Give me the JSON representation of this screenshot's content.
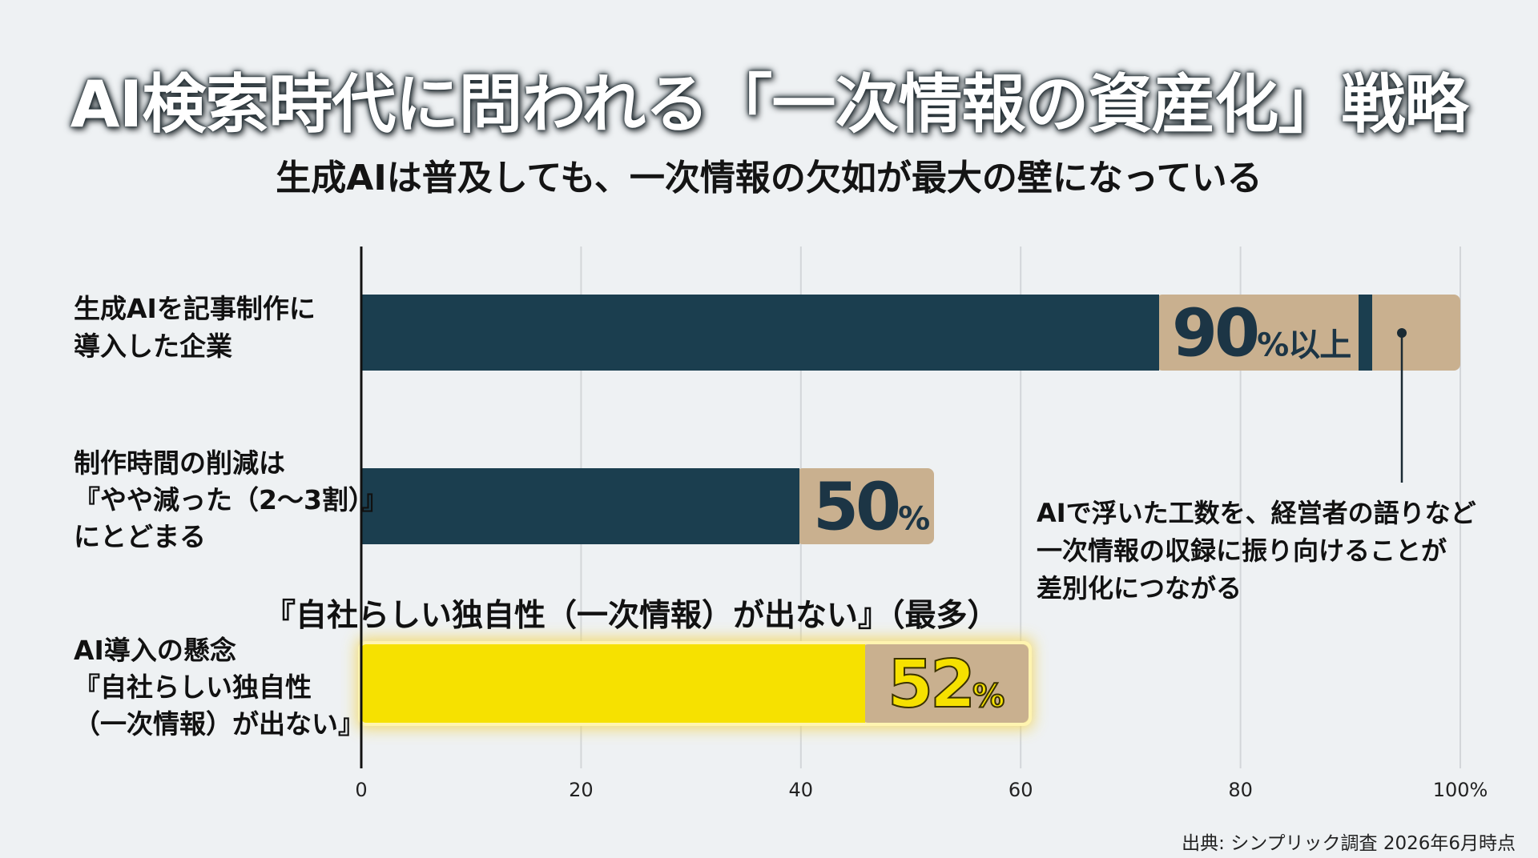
{
  "title": "AI検索時代に問われる「一次情報の資産化」戦略",
  "subtitle": "生成AIは普及しても、一次情報の欠如が最大の壁になっている",
  "source": "出典: シンプリック調査 2026年6月時点",
  "colors": {
    "navy": "#1b3e4f",
    "tan": "#c9b08f",
    "yellow": "#f6e100",
    "glow": "#f3d75c",
    "grid": "#d3d6d9"
  },
  "chart_data": {
    "type": "bar",
    "orientation": "horizontal",
    "x_ticks": [
      "0",
      "20",
      "40",
      "60",
      "80",
      "100%"
    ],
    "xlim": [
      0,
      100
    ],
    "grid": true,
    "bars": [
      {
        "category_lines": [
          "生成AIを記事制作に",
          "導入した企業"
        ],
        "value": 90,
        "value_text": "90",
        "unit_text": "%以上",
        "color": "#1b3e4f"
      },
      {
        "category_lines": [
          "制作時間の削減は",
          "『やや減った（2〜3割）』",
          "にとどまる"
        ],
        "value": 50,
        "value_text": "50",
        "unit_text": "%",
        "color": "#1b3e4f"
      },
      {
        "category_lines": [
          "AI導入の懸念",
          "『自社らしい独自性",
          "（一次情報）が出ない』"
        ],
        "value": 52,
        "value_text": "52",
        "unit_text": "%",
        "color": "#f6e100",
        "highlight": true,
        "callout": "『自社らしい独自性（一次情報）が出ない』（最多）"
      }
    ],
    "annotation": {
      "lines": [
        "AIで浮いた工数を、経営者の語りなど",
        "一次情報の収録に振り向けることが",
        "差別化につながる"
      ]
    }
  }
}
